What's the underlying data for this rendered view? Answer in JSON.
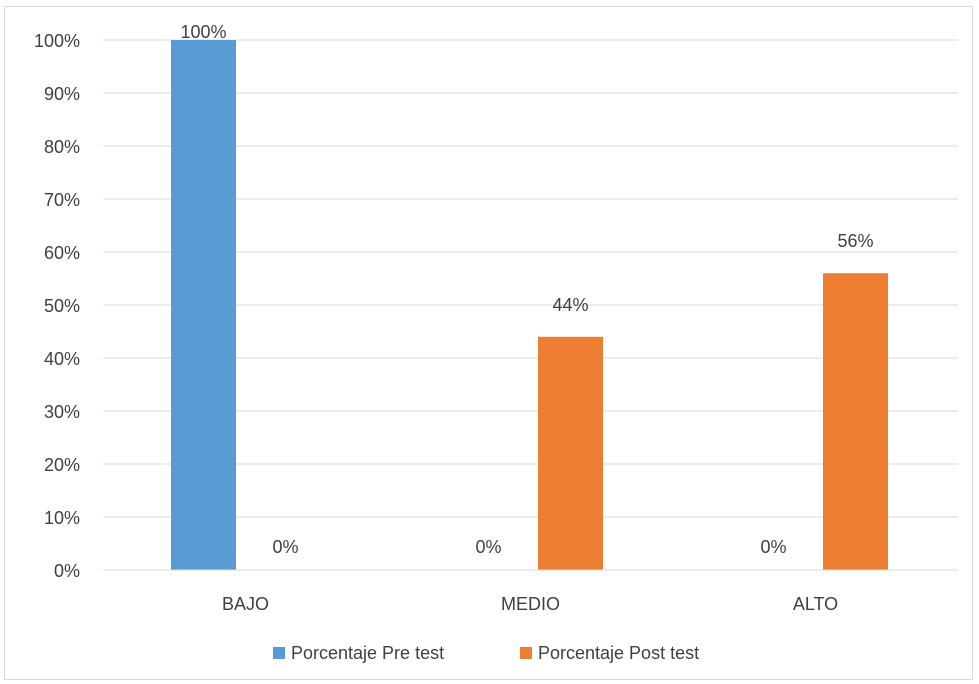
{
  "chart_data": {
    "type": "bar",
    "categories": [
      "BAJO",
      "MEDIO",
      "ALTO"
    ],
    "series": [
      {
        "name": "Porcentaje Pre test",
        "values": [
          100,
          0,
          0
        ],
        "labels": [
          "100%",
          "0%",
          "0%"
        ],
        "color": "#5b9bd5"
      },
      {
        "name": "Porcentaje Post test",
        "values": [
          0,
          44,
          56
        ],
        "labels": [
          "0%",
          "44%",
          "56%"
        ],
        "color": "#ed7d31"
      }
    ],
    "ylim": [
      0,
      100
    ],
    "y_ticks": [
      0,
      10,
      20,
      30,
      40,
      50,
      60,
      70,
      80,
      90,
      100
    ],
    "y_tick_labels": [
      "0%",
      "10%",
      "20%",
      "30%",
      "40%",
      "50%",
      "60%",
      "70%",
      "80%",
      "90%",
      "100%"
    ],
    "grid": true,
    "legend_position": "bottom",
    "gridline_color": "#d9d9d9",
    "title": "",
    "xlabel": "",
    "ylabel": ""
  }
}
